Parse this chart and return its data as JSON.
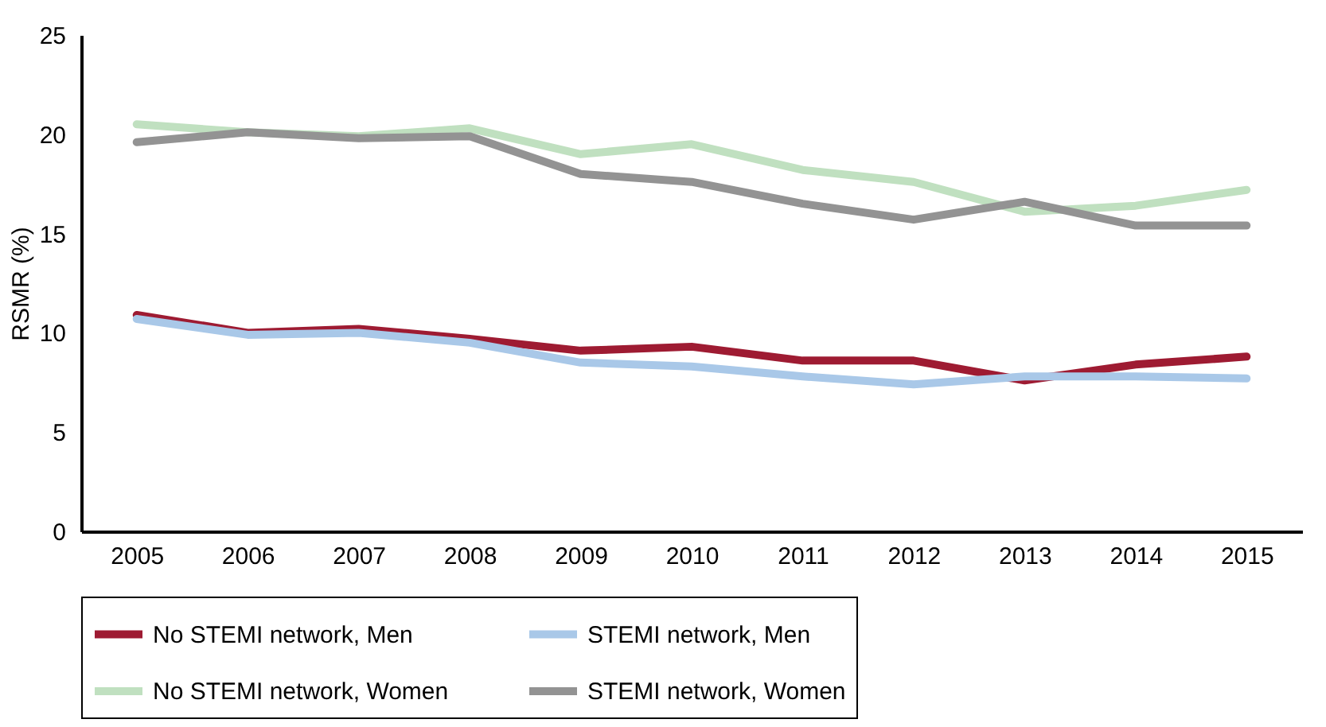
{
  "chart_data": {
    "type": "line",
    "ylabel": "RSMR (%)",
    "categories": [
      "2005",
      "2006",
      "2007",
      "2008",
      "2009",
      "2010",
      "2011",
      "2012",
      "2013",
      "2014",
      "2015"
    ],
    "ylim": [
      0,
      25
    ],
    "yticks": [
      0,
      5,
      10,
      15,
      20,
      25
    ],
    "grid": false,
    "legend": "bottom",
    "marker": "none",
    "line_style": "solid",
    "series": [
      {
        "name": "No STEMI network, Men",
        "color": "#9e1b32",
        "values": [
          10.9,
          10.0,
          10.2,
          9.7,
          9.1,
          9.3,
          8.6,
          8.6,
          7.6,
          8.4,
          8.8
        ]
      },
      {
        "name": "STEMI network, Men",
        "color": "#a9c8e8",
        "values": [
          10.7,
          9.9,
          10.0,
          9.5,
          8.5,
          8.3,
          7.8,
          7.4,
          7.8,
          7.8,
          7.7
        ]
      },
      {
        "name": "No STEMI network, Women",
        "color": "#c0e0c0",
        "values": [
          20.5,
          20.1,
          19.9,
          20.3,
          19.0,
          19.5,
          18.2,
          17.6,
          16.1,
          16.4,
          17.2
        ]
      },
      {
        "name": "STEMI network, Women",
        "color": "#939393",
        "values": [
          19.6,
          20.1,
          19.8,
          19.9,
          18.0,
          17.6,
          16.5,
          15.7,
          16.6,
          15.4,
          15.4
        ]
      }
    ]
  }
}
